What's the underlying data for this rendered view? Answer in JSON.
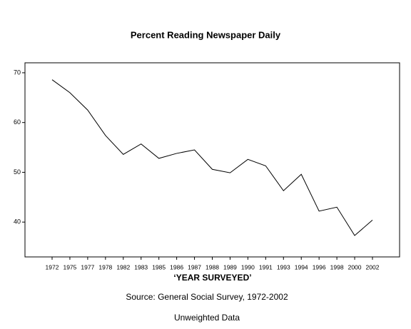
{
  "chart_data": {
    "type": "line",
    "title": "Percent Reading Newspaper Daily",
    "x_label": "‘YEAR SURVEYED’",
    "notes": [
      "Source: General Social Survey, 1972-2002",
      "Unweighted Data"
    ],
    "categories": [
      "1972",
      "1975",
      "1977",
      "1978",
      "1982",
      "1983",
      "1985",
      "1986",
      "1987",
      "1988",
      "1989",
      "1990",
      "1991",
      "1993",
      "1994",
      "1996",
      "1998",
      "2000",
      "2002"
    ],
    "values": [
      68.6,
      66.0,
      62.5,
      57.4,
      53.6,
      55.7,
      52.8,
      53.8,
      54.5,
      50.6,
      49.9,
      52.6,
      51.3,
      46.3,
      49.6,
      42.2,
      43.0,
      37.3,
      40.4
    ],
    "color": "#000000",
    "ylim": [
      33,
      72
    ],
    "yticks": [
      40,
      50,
      60,
      70
    ]
  }
}
